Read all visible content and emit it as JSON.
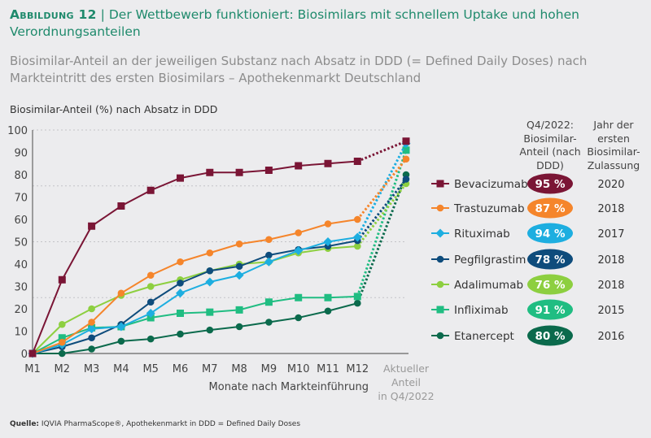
{
  "figure": {
    "label": "Abbildung 12",
    "title": "Der Wettbewerb funktioniert: Biosimilars mit schnellem Uptake und hohen Verordnungsanteilen",
    "subtitle": "Biosimilar-Anteil an der jeweiligen Substanz nach Absatz in DDD (= Defined Daily Doses) nach Markteintritt des ersten Biosimilars – Apothekenmarkt Deutschland",
    "source_label": "Quelle:",
    "source": "IQVIA PharmaScope®, Apothekenmarkt in DDD = Defined Daily Doses"
  },
  "legend_headers": {
    "share": "Q4/2022: Biosimilar-Anteil (nach DDD)",
    "year": "Jahr der ersten Biosimilar-Zulassung"
  },
  "chart_data": {
    "type": "line",
    "ylabel": "Biosimilar-Anteil (%) nach Absatz in DDD",
    "xlabel": "Monate nach Markteinführung",
    "categories": [
      "M1",
      "M2",
      "M3",
      "M4",
      "M5",
      "M6",
      "M7",
      "M8",
      "M9",
      "M10",
      "M11",
      "M12",
      "Aktueller Anteil in Q4/2022"
    ],
    "yticks": [
      0,
      10,
      20,
      30,
      40,
      50,
      60,
      70,
      80,
      90,
      100
    ],
    "ylim": [
      0,
      100
    ],
    "grid": "dotted horizontal at 25, 50, 75, 100",
    "legend_position": "right",
    "last_point_connector": "dotted",
    "series": [
      {
        "name": "Bevacizumab",
        "color": "#7a1535",
        "marker": "square",
        "share": "95 %",
        "year": "2020",
        "values": [
          0,
          33,
          57,
          66,
          73,
          78.5,
          81,
          81,
          82,
          84,
          85,
          86,
          95
        ]
      },
      {
        "name": "Trastuzumab",
        "color": "#f5852b",
        "marker": "circle",
        "share": "87 %",
        "year": "2018",
        "values": [
          0,
          5,
          14,
          27,
          35,
          41,
          45,
          49,
          51,
          54,
          58,
          60,
          87
        ]
      },
      {
        "name": "Rituximab",
        "color": "#1daee0",
        "marker": "diamond",
        "share": "94 %",
        "year": "2017",
        "values": [
          0,
          4,
          11,
          12,
          18,
          27,
          32,
          35,
          41,
          46,
          50,
          52,
          94
        ]
      },
      {
        "name": "Pegfilgrastim",
        "color": "#0e4c7c",
        "marker": "circle",
        "share": "78 %",
        "year": "2018",
        "values": [
          0,
          3,
          7,
          13,
          23,
          31.5,
          37,
          39,
          44,
          46.5,
          48,
          50.5,
          78
        ]
      },
      {
        "name": "Adalimumab",
        "color": "#8dcf40",
        "marker": "circle",
        "share": "76 %",
        "year": "2018",
        "values": [
          0,
          13,
          20,
          26,
          30,
          33,
          37,
          40,
          41,
          45,
          47,
          48,
          76
        ]
      },
      {
        "name": "Infliximab",
        "color": "#20bd82",
        "marker": "square",
        "share": "91 %",
        "year": "2015",
        "values": [
          0,
          7,
          11.5,
          12,
          16,
          18,
          18.5,
          19.5,
          23,
          25,
          25,
          25.5,
          91
        ]
      },
      {
        "name": "Etanercept",
        "color": "#0b6a4c",
        "marker": "circle",
        "share": "80 %",
        "year": "2016",
        "values": [
          0,
          0,
          2,
          5.5,
          6.5,
          8.7,
          10.5,
          12,
          14,
          16,
          19,
          22.5,
          80
        ]
      }
    ]
  }
}
